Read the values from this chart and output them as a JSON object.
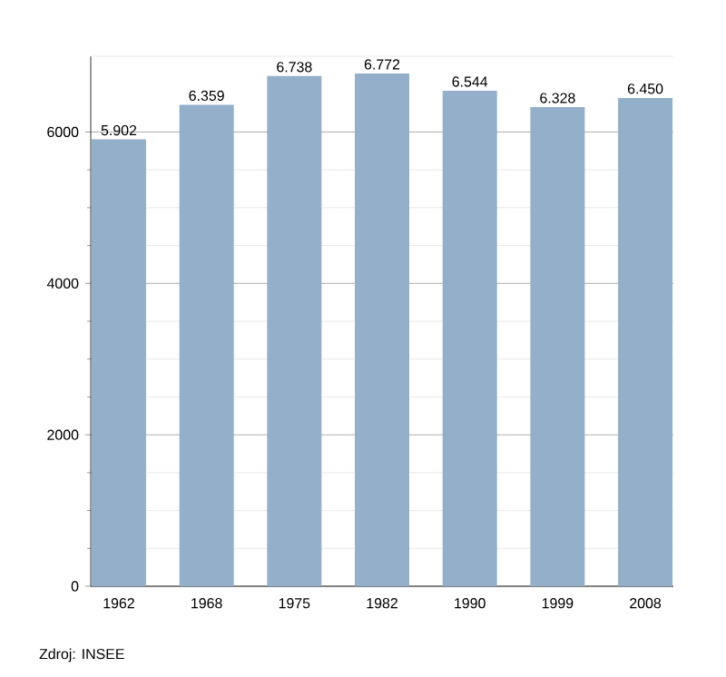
{
  "chart_data": {
    "type": "bar",
    "categories": [
      "1962",
      "1968",
      "1975",
      "1982",
      "1990",
      "1999",
      "2008"
    ],
    "values": [
      5902,
      6359,
      6738,
      6772,
      6544,
      6328,
      6450
    ],
    "value_labels": [
      "5.902",
      "6.359",
      "6.738",
      "6.772",
      "6.544",
      "6.328",
      "6.450"
    ],
    "color": "#94afca",
    "ylim": [
      0,
      7000
    ],
    "yticks": [
      0,
      2000,
      4000,
      6000
    ],
    "grid": "y",
    "annotations": [
      "Zdroj: INSEE"
    ]
  }
}
